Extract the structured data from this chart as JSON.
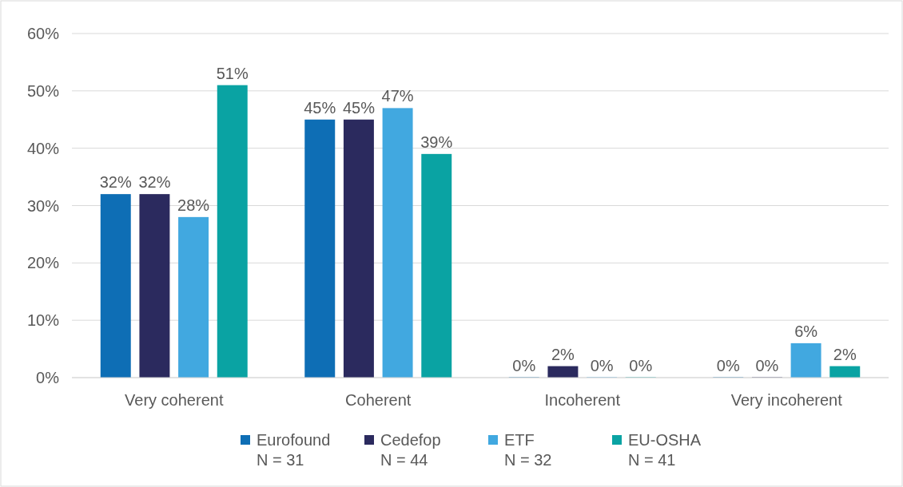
{
  "chart_data": {
    "type": "bar",
    "categories": [
      "Very coherent",
      "Coherent",
      "Incoherent",
      "Very incoherent"
    ],
    "series": [
      {
        "name": "Eurofound\nN = 31",
        "color": "#0e6eb5",
        "values": [
          32,
          45,
          0,
          0
        ],
        "value_labels": [
          "32%",
          "45%",
          "0%",
          "0%"
        ]
      },
      {
        "name": "Cedefop\nN = 44",
        "color": "#2b2a5e",
        "values": [
          32,
          45,
          2,
          0
        ],
        "value_labels": [
          "32%",
          "45%",
          "2%",
          "0%"
        ]
      },
      {
        "name": "ETF\nN = 32",
        "color": "#41a8e0",
        "values": [
          28,
          47,
          0,
          6
        ],
        "value_labels": [
          "28%",
          "47%",
          "0%",
          "6%"
        ]
      },
      {
        "name": "EU-OSHA\nN = 41",
        "color": "#0aa3a3",
        "values": [
          51,
          39,
          0,
          2
        ],
        "value_labels": [
          "51%",
          "39%",
          "0%",
          "2%"
        ]
      }
    ],
    "ylim": [
      0,
      60
    ],
    "yticks": [
      {
        "value": 0,
        "label": "0%"
      },
      {
        "value": 10,
        "label": "10%"
      },
      {
        "value": 20,
        "label": "20%"
      },
      {
        "value": 30,
        "label": "30%"
      },
      {
        "value": 40,
        "label": "40%"
      },
      {
        "value": 50,
        "label": "50%"
      },
      {
        "value": 60,
        "label": "60%"
      }
    ],
    "grid": "y",
    "legend": "bottom"
  }
}
